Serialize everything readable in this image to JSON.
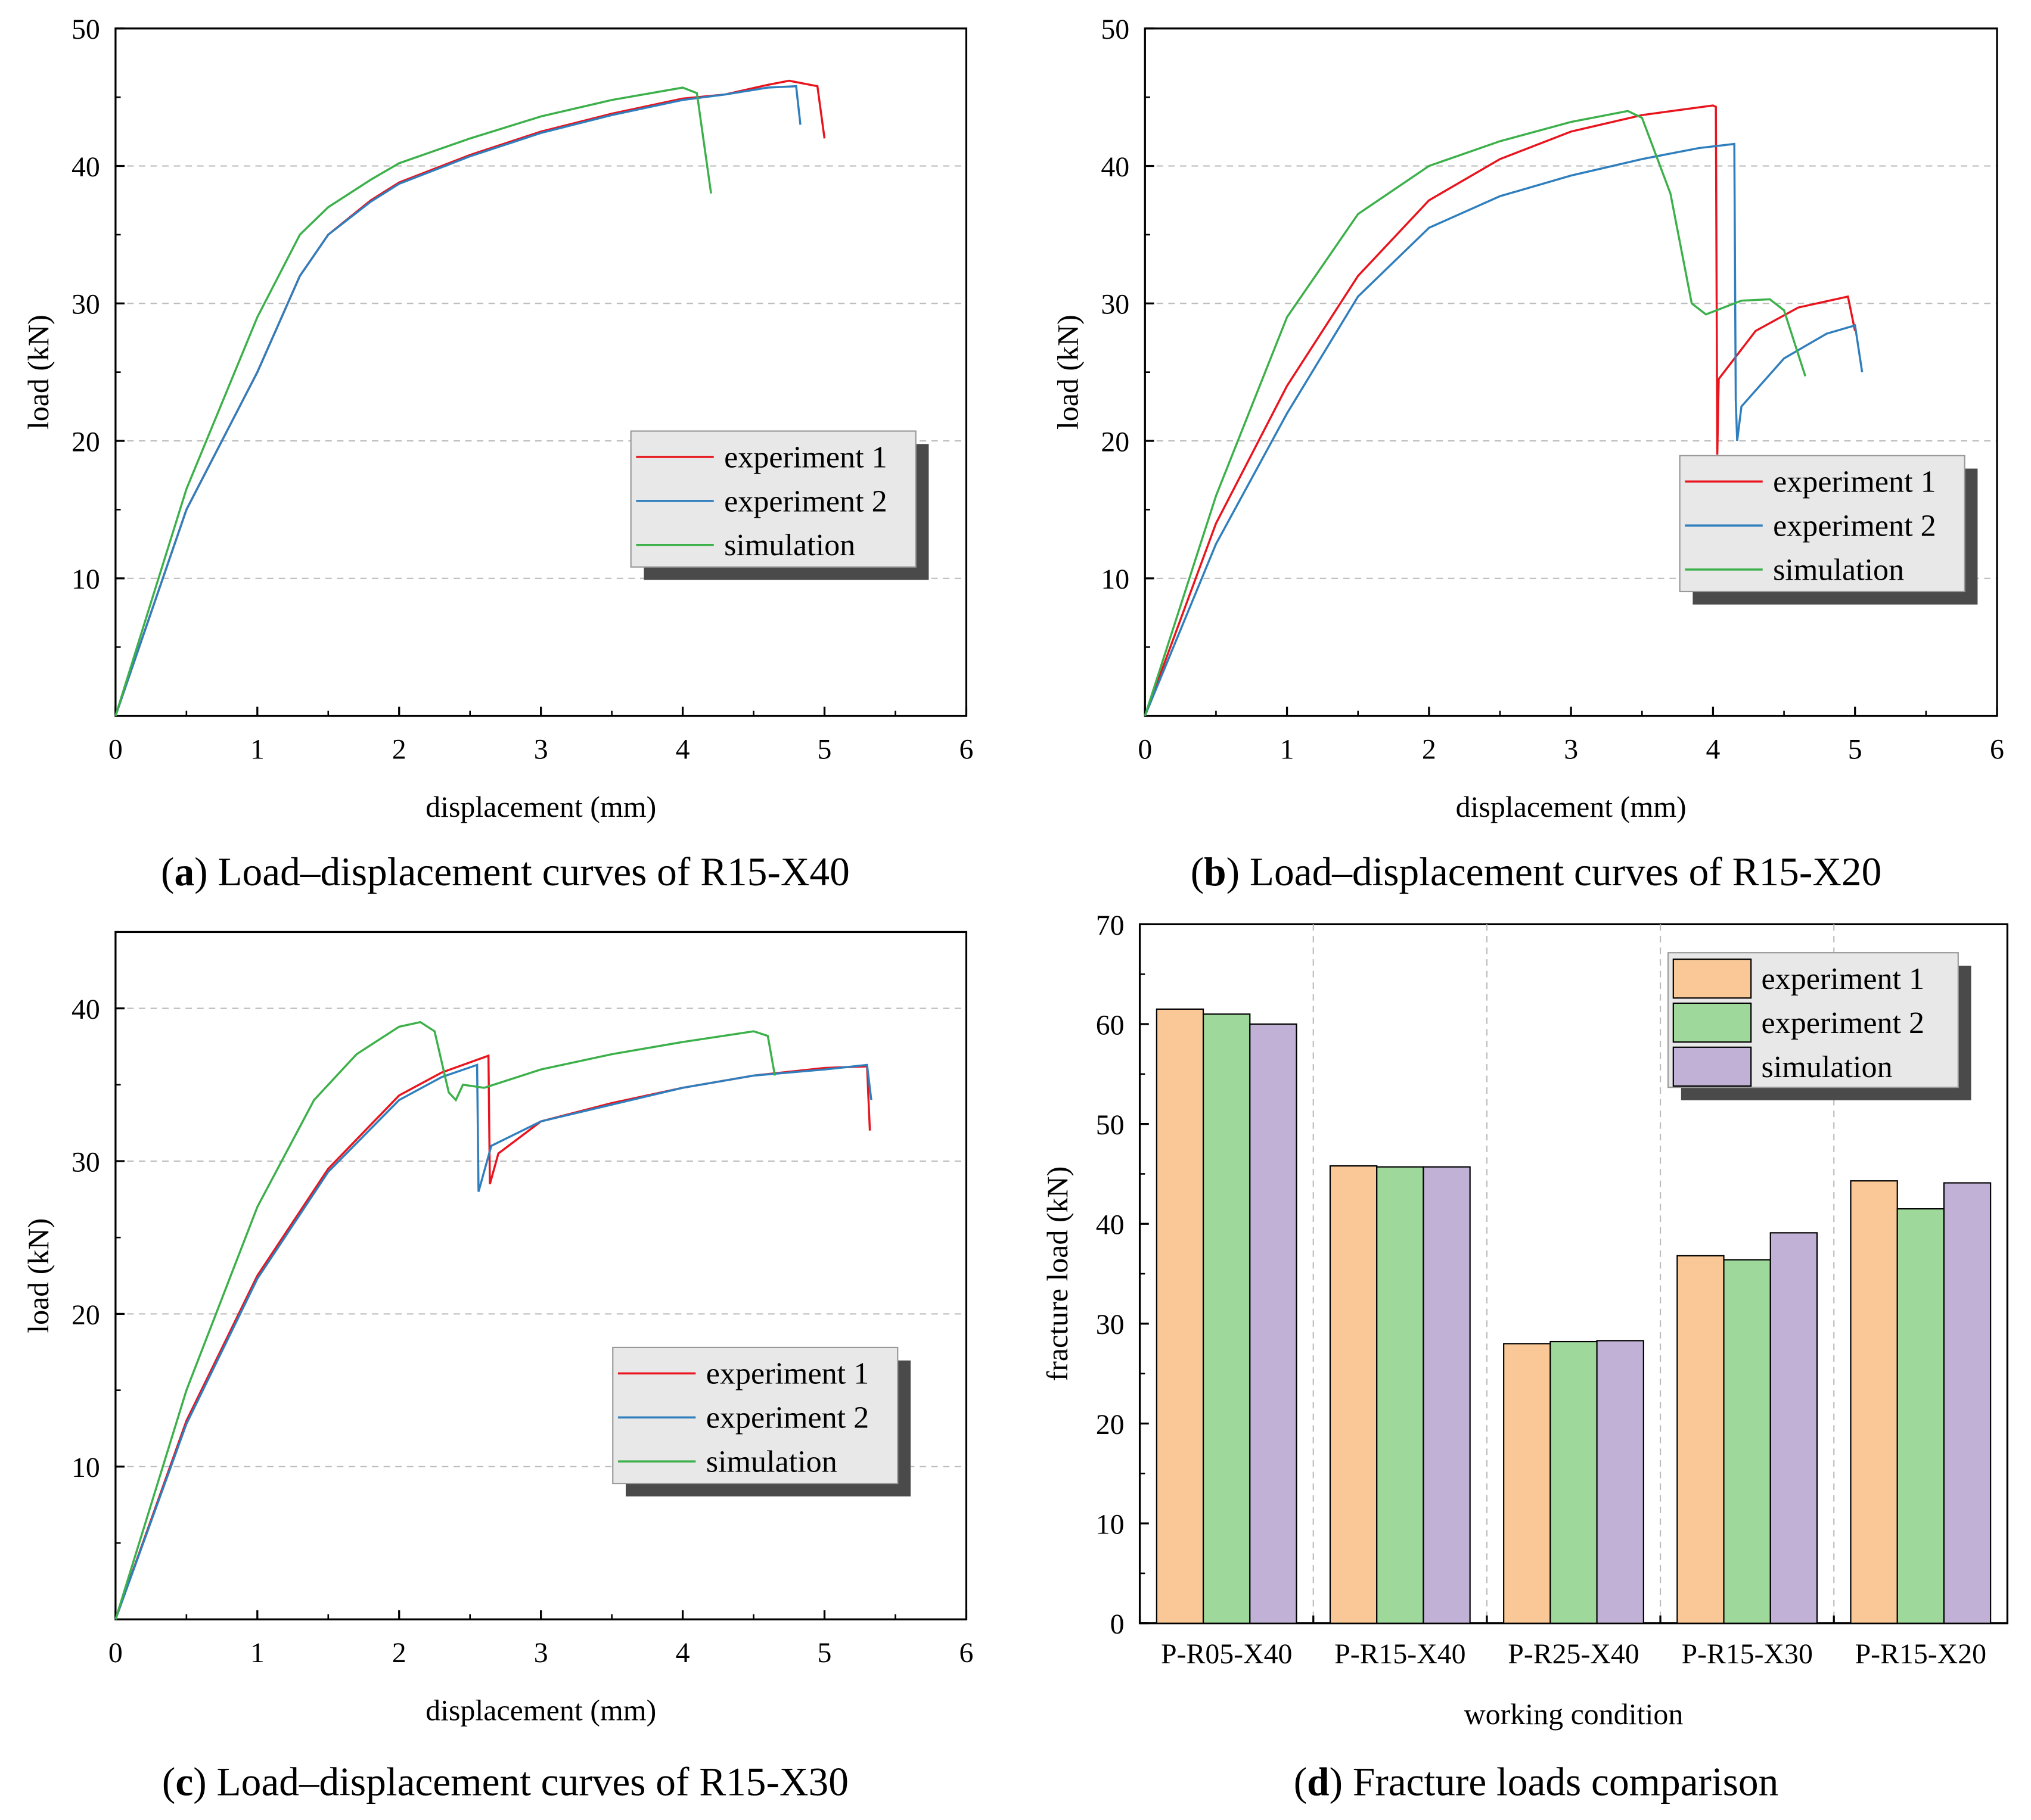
{
  "colors": {
    "exp1_line": "#e8141e",
    "exp2_line": "#2f7ebd",
    "sim_line": "#3cb04a",
    "exp1_bar": "#f9c896",
    "exp2_bar": "#9ed89a",
    "sim_bar": "#c2b1d6",
    "legend_bg": "#e8e8e8",
    "legend_shadow": "#4a4a4a",
    "grid": "#bdbdbd"
  },
  "chart_data": [
    {
      "type": "line",
      "panel": "a",
      "caption_letter": "a",
      "caption": " Load–displacement curves of R15-X40",
      "xlabel": "displacement (mm)",
      "ylabel": "load (kN)",
      "xlim": [
        0,
        6
      ],
      "ylim": [
        0,
        50
      ],
      "xticks": [
        0,
        1,
        2,
        3,
        4,
        5,
        6
      ],
      "yticks": [
        10,
        20,
        30,
        40,
        50
      ],
      "ytick_labels": [
        "10",
        "20",
        "30",
        "40",
        "50"
      ],
      "grid": "horizontal dashed",
      "legend": "center-right",
      "series": [
        {
          "name": "experiment 1",
          "color_key": "exp1_line",
          "points": [
            [
              0,
              0
            ],
            [
              0.5,
              15
            ],
            [
              1,
              25
            ],
            [
              1.3,
              32
            ],
            [
              1.5,
              35
            ],
            [
              1.8,
              37.5
            ],
            [
              2,
              38.8
            ],
            [
              2.5,
              40.8
            ],
            [
              3,
              42.5
            ],
            [
              3.5,
              43.8
            ],
            [
              4,
              44.9
            ],
            [
              4.3,
              45.2
            ],
            [
              4.6,
              45.9
            ],
            [
              4.75,
              46.2
            ],
            [
              4.95,
              45.8
            ],
            [
              5.0,
              42
            ]
          ]
        },
        {
          "name": "experiment 2",
          "color_key": "exp2_line",
          "points": [
            [
              0,
              0
            ],
            [
              0.5,
              15
            ],
            [
              1,
              25
            ],
            [
              1.3,
              32
            ],
            [
              1.5,
              35
            ],
            [
              1.8,
              37.4
            ],
            [
              2,
              38.7
            ],
            [
              2.5,
              40.7
            ],
            [
              3,
              42.4
            ],
            [
              3.5,
              43.7
            ],
            [
              4,
              44.8
            ],
            [
              4.3,
              45.2
            ],
            [
              4.6,
              45.7
            ],
            [
              4.8,
              45.8
            ],
            [
              4.83,
              43
            ]
          ]
        },
        {
          "name": "simulation",
          "color_key": "sim_line",
          "points": [
            [
              0,
              0
            ],
            [
              0.5,
              16.5
            ],
            [
              1,
              29
            ],
            [
              1.3,
              35
            ],
            [
              1.5,
              37
            ],
            [
              1.8,
              39
            ],
            [
              2,
              40.2
            ],
            [
              2.5,
              42
            ],
            [
              3,
              43.6
            ],
            [
              3.5,
              44.8
            ],
            [
              4,
              45.7
            ],
            [
              4.1,
              45.3
            ],
            [
              4.2,
              38
            ]
          ]
        }
      ]
    },
    {
      "type": "line",
      "panel": "b",
      "caption_letter": "b",
      "caption": " Load–displacement curves of R15-X20",
      "xlabel": "displacement (mm)",
      "ylabel": "load (kN)",
      "xlim": [
        0,
        6
      ],
      "ylim": [
        0,
        50
      ],
      "xticks": [
        0,
        1,
        2,
        3,
        4,
        5,
        6
      ],
      "yticks": [
        10,
        20,
        30,
        40,
        50
      ],
      "ytick_labels": [
        "10",
        "20",
        "30",
        "40",
        "50"
      ],
      "grid": "horizontal dashed",
      "legend": "center-right",
      "series": [
        {
          "name": "experiment 1",
          "color_key": "exp1_line",
          "points": [
            [
              0,
              0
            ],
            [
              0.5,
              14
            ],
            [
              1,
              24
            ],
            [
              1.5,
              32
            ],
            [
              2,
              37.5
            ],
            [
              2.5,
              40.5
            ],
            [
              3,
              42.5
            ],
            [
              3.5,
              43.7
            ],
            [
              4,
              44.4
            ],
            [
              4.02,
              44.3
            ],
            [
              4.03,
              19
            ],
            [
              4.04,
              24.5
            ],
            [
              4.3,
              28
            ],
            [
              4.6,
              29.7
            ],
            [
              4.95,
              30.5
            ],
            [
              5.0,
              28
            ]
          ]
        },
        {
          "name": "experiment 2",
          "color_key": "exp2_line",
          "points": [
            [
              0,
              0
            ],
            [
              0.5,
              12.5
            ],
            [
              1,
              22
            ],
            [
              1.5,
              30.5
            ],
            [
              2,
              35.5
            ],
            [
              2.5,
              37.8
            ],
            [
              3,
              39.3
            ],
            [
              3.5,
              40.5
            ],
            [
              3.9,
              41.3
            ],
            [
              4.15,
              41.6
            ],
            [
              4.16,
              23
            ],
            [
              4.17,
              20
            ],
            [
              4.2,
              22.5
            ],
            [
              4.5,
              26
            ],
            [
              4.8,
              27.8
            ],
            [
              5.0,
              28.4
            ],
            [
              5.05,
              25
            ]
          ]
        },
        {
          "name": "simulation",
          "color_key": "sim_line",
          "points": [
            [
              0,
              0
            ],
            [
              0.5,
              16
            ],
            [
              1,
              29
            ],
            [
              1.5,
              36.5
            ],
            [
              2,
              40
            ],
            [
              2.5,
              41.8
            ],
            [
              3,
              43.2
            ],
            [
              3.4,
              44
            ],
            [
              3.5,
              43.5
            ],
            [
              3.7,
              38
            ],
            [
              3.85,
              30
            ],
            [
              3.95,
              29.2
            ],
            [
              4.2,
              30.2
            ],
            [
              4.4,
              30.3
            ],
            [
              4.5,
              29.5
            ],
            [
              4.65,
              24.7
            ]
          ]
        }
      ]
    },
    {
      "type": "line",
      "panel": "c",
      "caption_letter": "c",
      "caption": " Load–displacement curves of R15-X30",
      "xlabel": "displacement (mm)",
      "ylabel": "load (kN)",
      "xlim": [
        0,
        6
      ],
      "ylim": [
        0,
        45
      ],
      "xticks": [
        0,
        1,
        2,
        3,
        4,
        5,
        6
      ],
      "yticks": [
        10,
        20,
        30,
        40
      ],
      "ytick_labels": [
        "10",
        "20",
        "30",
        "40"
      ],
      "grid": "horizontal dashed",
      "legend": "center-right",
      "series": [
        {
          "name": "experiment 1",
          "color_key": "exp1_line",
          "points": [
            [
              0,
              0
            ],
            [
              0.5,
              13
            ],
            [
              1,
              22.5
            ],
            [
              1.5,
              29.5
            ],
            [
              2,
              34.3
            ],
            [
              2.3,
              35.8
            ],
            [
              2.6,
              36.8
            ],
            [
              2.63,
              36.9
            ],
            [
              2.64,
              28.5
            ],
            [
              2.7,
              30.5
            ],
            [
              3,
              32.6
            ],
            [
              3.5,
              33.8
            ],
            [
              4,
              34.8
            ],
            [
              4.5,
              35.6
            ],
            [
              5,
              36.1
            ],
            [
              5.3,
              36.2
            ],
            [
              5.32,
              32
            ]
          ]
        },
        {
          "name": "experiment 2",
          "color_key": "exp2_line",
          "points": [
            [
              0,
              0
            ],
            [
              0.5,
              12.8
            ],
            [
              1,
              22.3
            ],
            [
              1.5,
              29.3
            ],
            [
              2,
              34
            ],
            [
              2.3,
              35.5
            ],
            [
              2.55,
              36.3
            ],
            [
              2.56,
              28
            ],
            [
              2.65,
              31
            ],
            [
              3,
              32.6
            ],
            [
              3.5,
              33.7
            ],
            [
              4,
              34.8
            ],
            [
              4.5,
              35.6
            ],
            [
              5,
              36
            ],
            [
              5.3,
              36.3
            ],
            [
              5.33,
              34
            ]
          ]
        },
        {
          "name": "simulation",
          "color_key": "sim_line",
          "points": [
            [
              0,
              0
            ],
            [
              0.5,
              15
            ],
            [
              1,
              27
            ],
            [
              1.4,
              34
            ],
            [
              1.7,
              37
            ],
            [
              2,
              38.8
            ],
            [
              2.15,
              39.1
            ],
            [
              2.25,
              38.5
            ],
            [
              2.35,
              34.5
            ],
            [
              2.4,
              34
            ],
            [
              2.45,
              35
            ],
            [
              2.6,
              34.8
            ],
            [
              3,
              36
            ],
            [
              3.5,
              37
            ],
            [
              4,
              37.8
            ],
            [
              4.5,
              38.5
            ],
            [
              4.6,
              38.2
            ],
            [
              4.65,
              35.6
            ]
          ]
        }
      ]
    },
    {
      "type": "bar",
      "panel": "d",
      "caption_letter": "d",
      "caption": " Fracture loads comparison",
      "xlabel": "working condition",
      "ylabel": "fracture load (kN)",
      "ylim": [
        0,
        70
      ],
      "yticks": [
        0,
        10,
        20,
        30,
        40,
        50,
        60,
        70
      ],
      "ytick_labels": [
        "0",
        "10",
        "20",
        "30",
        "40",
        "50",
        "60",
        "70"
      ],
      "legend": "top-right",
      "categories": [
        "P-R05-X40",
        "P-R15-X40",
        "P-R25-X40",
        "P-R15-X30",
        "P-R15-X20"
      ],
      "series": [
        {
          "name": "experiment 1",
          "color_key": "exp1_bar",
          "values": [
            61.5,
            45.8,
            28.0,
            36.8,
            44.3
          ]
        },
        {
          "name": "experiment 2",
          "color_key": "exp2_bar",
          "values": [
            61.0,
            45.7,
            28.2,
            36.4,
            41.5
          ]
        },
        {
          "name": "simulation",
          "color_key": "sim_bar",
          "values": [
            60.0,
            45.7,
            28.3,
            39.1,
            44.1
          ]
        }
      ]
    }
  ]
}
